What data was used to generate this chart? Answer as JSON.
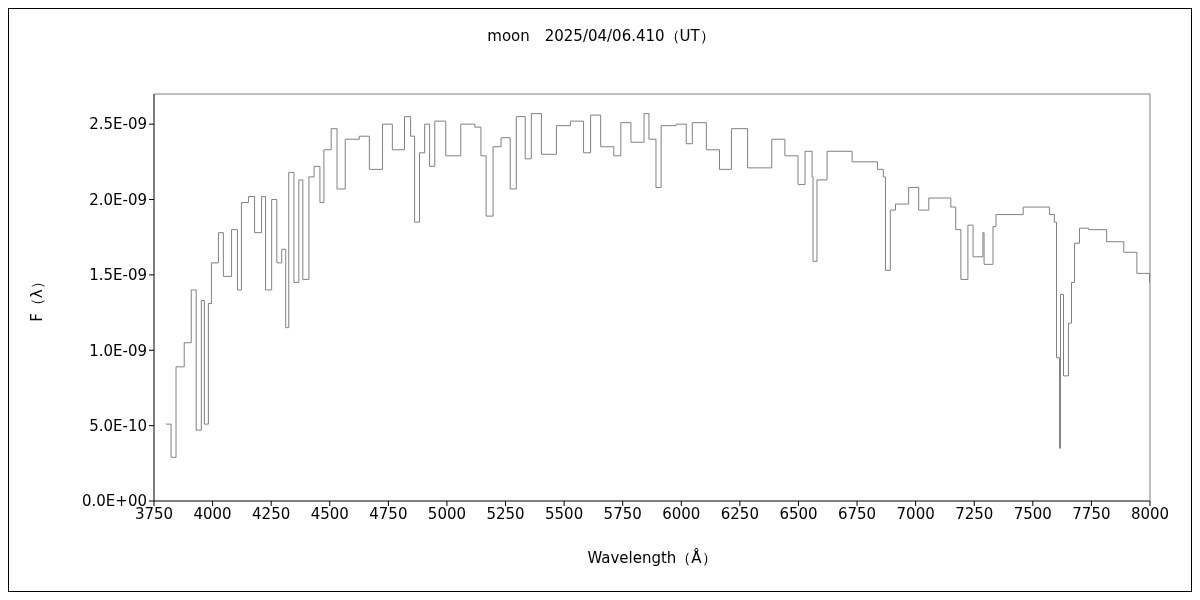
{
  "chart_data": {
    "type": "step",
    "title": "moon　2025/04/06.410（UT）",
    "xlabel": "Wavelength（Å）",
    "ylabel": "F（λ）",
    "x": [
      3801,
      3823,
      3844,
      3879,
      3909,
      3930,
      3952,
      3965,
      3982,
      3995,
      4025,
      4046,
      4081,
      4106,
      4123,
      4153,
      4179,
      4209,
      4226,
      4252,
      4274,
      4295,
      4312,
      4325,
      4347,
      4368,
      4385,
      4411,
      4433,
      4458,
      4475,
      4506,
      4531,
      4566,
      4626,
      4669,
      4725,
      4767,
      4819,
      4845,
      4862,
      4883,
      4905,
      4926,
      4948,
      4995,
      5059,
      5119,
      5145,
      5167,
      5197,
      5231,
      5270,
      5296,
      5334,
      5360,
      5403,
      5467,
      5527,
      5583,
      5613,
      5656,
      5712,
      5742,
      5785,
      5841,
      5862,
      5892,
      5914,
      5978,
      6021,
      6047,
      6107,
      6163,
      6214,
      6283,
      6386,
      6442,
      6498,
      6528,
      6558,
      6562,
      6579,
      6622,
      6729,
      6837,
      6862,
      6871,
      6892,
      6914,
      6970,
      7013,
      7056,
      7150,
      7171,
      7193,
      7223,
      7245,
      7287,
      7292,
      7330,
      7343,
      7459,
      7571,
      7592,
      7601,
      7614,
      7618,
      7631,
      7652,
      7665,
      7678,
      7699,
      7738,
      7815,
      7888,
      7944,
      7998
    ],
    "series": [
      {
        "color": "#808080",
        "values": [
          5.1e-10,
          2.9e-10,
          8.9e-10,
          1.05e-09,
          1.4e-09,
          4.7e-10,
          1.33e-09,
          5.1e-10,
          1.31e-09,
          1.58e-09,
          1.78e-09,
          1.49e-09,
          1.8e-09,
          1.4e-09,
          1.98e-09,
          2.02e-09,
          1.78e-09,
          2.02e-09,
          1.4e-09,
          2e-09,
          1.58e-09,
          1.67e-09,
          1.15e-09,
          2.18e-09,
          1.45e-09,
          2.13e-09,
          1.47e-09,
          2.15e-09,
          2.22e-09,
          1.98e-09,
          2.33e-09,
          2.47e-09,
          2.07e-09,
          2.4e-09,
          2.42e-09,
          2.2e-09,
          2.5e-09,
          2.33e-09,
          2.55e-09,
          2.42e-09,
          1.85e-09,
          2.31e-09,
          2.5e-09,
          2.22e-09,
          2.52e-09,
          2.29e-09,
          2.5e-09,
          2.48e-09,
          2.29e-09,
          1.89e-09,
          2.35e-09,
          2.41e-09,
          2.07e-09,
          2.55e-09,
          2.27e-09,
          2.57e-09,
          2.3e-09,
          2.49e-09,
          2.52e-09,
          2.31e-09,
          2.56e-09,
          2.35e-09,
          2.29e-09,
          2.51e-09,
          2.38e-09,
          2.57e-09,
          2.4e-09,
          2.08e-09,
          2.49e-09,
          2.5e-09,
          2.37e-09,
          2.51e-09,
          2.33e-09,
          2.2e-09,
          2.47e-09,
          2.21e-09,
          2.4e-09,
          2.29e-09,
          2.1e-09,
          2.32e-09,
          2.15e-09,
          1.59e-09,
          2.13e-09,
          2.32e-09,
          2.25e-09,
          2.2e-09,
          2.15e-09,
          1.53e-09,
          1.93e-09,
          1.97e-09,
          2.08e-09,
          1.93e-09,
          2.01e-09,
          1.95e-09,
          1.8e-09,
          1.47e-09,
          1.83e-09,
          1.62e-09,
          1.78e-09,
          1.57e-09,
          1.82e-09,
          1.9e-09,
          1.95e-09,
          1.9e-09,
          1.85e-09,
          9.5e-10,
          3.5e-10,
          1.37e-09,
          8.3e-10,
          1.18e-09,
          1.45e-09,
          1.71e-09,
          1.81e-09,
          1.8e-09,
          1.72e-09,
          1.65e-09,
          1.51e-09,
          1.45e-09
        ]
      }
    ],
    "xlim": [
      3750,
      8000
    ],
    "xticks": [
      3750,
      4000,
      4250,
      4500,
      4750,
      5000,
      5250,
      5500,
      5750,
      6000,
      6250,
      6500,
      6750,
      7000,
      7250,
      7500,
      7750,
      8000
    ],
    "ylim": [
      0,
      2.7e-09
    ],
    "yticks": [
      {
        "value": 0,
        "label": "0.0E+00"
      },
      {
        "value": 5e-10,
        "label": "5.0E-10"
      },
      {
        "value": 1e-09,
        "label": "1.0E-09"
      },
      {
        "value": 1.5e-09,
        "label": "1.5E-09"
      },
      {
        "value": 2e-09,
        "label": "2.0E-09"
      },
      {
        "value": 2.5e-09,
        "label": "2.5E-09"
      }
    ],
    "grid": false,
    "legend": false
  }
}
